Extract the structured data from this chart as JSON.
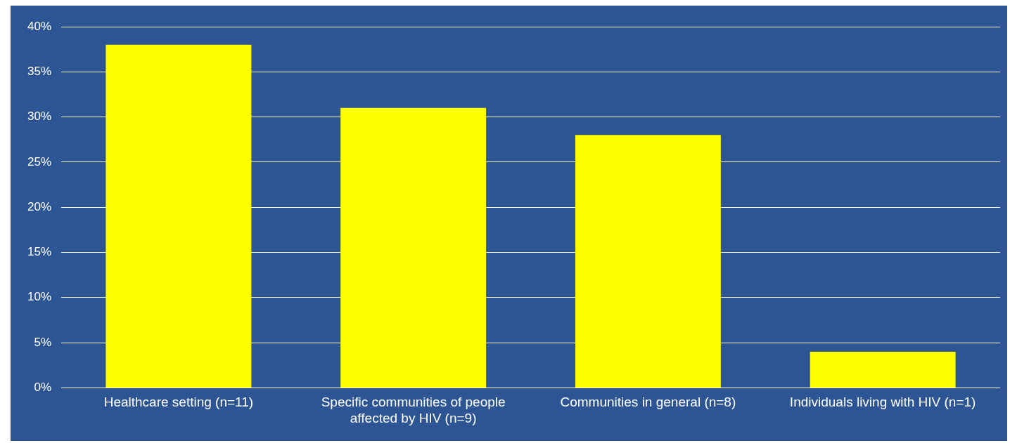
{
  "chart_data": {
    "type": "bar",
    "categories": [
      "Healthcare setting (n=11)",
      "Specific communities of people affected by HIV (n=9)",
      "Communities in general (n=8)",
      "Individuals living with HIV (n=1)"
    ],
    "values": [
      38,
      31,
      28,
      4
    ],
    "color": "#ffff00",
    "ylim": [
      0,
      40
    ],
    "yticks": [
      {
        "value": 0,
        "label": "0%"
      },
      {
        "value": 5,
        "label": "5%"
      },
      {
        "value": 10,
        "label": "10%"
      },
      {
        "value": 15,
        "label": "15%"
      },
      {
        "value": 20,
        "label": "20%"
      },
      {
        "value": 25,
        "label": "25%"
      },
      {
        "value": 30,
        "label": "30%"
      },
      {
        "value": 35,
        "label": "35%"
      },
      {
        "value": 40,
        "label": "40%"
      }
    ],
    "grid": "y",
    "legend": false
  }
}
